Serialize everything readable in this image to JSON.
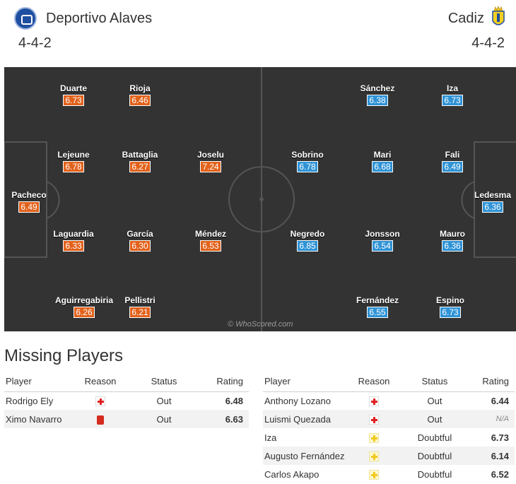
{
  "home": {
    "name": "Deportivo Alaves",
    "formation": "4-4-2",
    "color": "#e2621b",
    "players": [
      {
        "name": "Duarte",
        "rating": "6.73"
      },
      {
        "name": "Rioja",
        "rating": "6.46"
      },
      {
        "name": "Lejeune",
        "rating": "6.78"
      },
      {
        "name": "Battaglia",
        "rating": "6.27"
      },
      {
        "name": "Joselu",
        "rating": "7.24"
      },
      {
        "name": "Pacheco",
        "rating": "6.49"
      },
      {
        "name": "Laguardia",
        "rating": "6.33"
      },
      {
        "name": "García",
        "rating": "6.30"
      },
      {
        "name": "Méndez",
        "rating": "6.53"
      },
      {
        "name": "Aguirregabiria",
        "rating": "6.26"
      },
      {
        "name": "Pellistri",
        "rating": "6.21"
      }
    ]
  },
  "away": {
    "name": "Cadiz",
    "formation": "4-4-2",
    "color": "#2f93d6",
    "players": [
      {
        "name": "Sánchez",
        "rating": "6.38"
      },
      {
        "name": "Iza",
        "rating": "6.73"
      },
      {
        "name": "Sobrino",
        "rating": "6.78"
      },
      {
        "name": "Mari",
        "rating": "6.68"
      },
      {
        "name": "Fali",
        "rating": "6.49"
      },
      {
        "name": "Ledesma",
        "rating": "6.36"
      },
      {
        "name": "Negredo",
        "rating": "6.85"
      },
      {
        "name": "Jonsson",
        "rating": "6.54"
      },
      {
        "name": "Mauro",
        "rating": "6.36"
      },
      {
        "name": "Fernández",
        "rating": "6.55"
      },
      {
        "name": "Espino",
        "rating": "6.73"
      }
    ]
  },
  "watermark": "© WhoScored.com",
  "missing": {
    "title": "Missing Players",
    "headers": {
      "player": "Player",
      "reason": "Reason",
      "status": "Status",
      "rating": "Rating"
    },
    "home_rows": [
      {
        "player": "Rodrigo Ely",
        "reason_icon": "injury-icon",
        "status": "Out",
        "rating": "6.48"
      },
      {
        "player": "Ximo Navarro",
        "reason_icon": "red-card-icon",
        "status": "Out",
        "rating": "6.63"
      }
    ],
    "away_rows": [
      {
        "player": "Anthony Lozano",
        "reason_icon": "injury-icon",
        "status": "Out",
        "rating": "6.44"
      },
      {
        "player": "Luismi Quezada",
        "reason_icon": "injury-icon",
        "status": "Out",
        "rating": "N/A"
      },
      {
        "player": "Iza",
        "reason_icon": "doubtful-icon",
        "status": "Doubtful",
        "rating": "6.73"
      },
      {
        "player": "Augusto Fernández",
        "reason_icon": "doubtful-icon",
        "status": "Doubtful",
        "rating": "6.14"
      },
      {
        "player": "Carlos Akapo",
        "reason_icon": "doubtful-icon",
        "status": "Doubtful",
        "rating": "6.52"
      }
    ]
  }
}
